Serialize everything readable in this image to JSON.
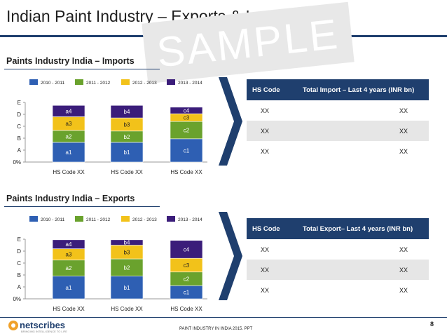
{
  "page": {
    "title": "Indian Paint Industry – Exports & Imports",
    "watermark": "SAMPLE",
    "footer": "PAINT INDUSTRY IN INDIA 2015. PPT",
    "page_number": "8",
    "logo_text": "netscribes",
    "logo_sub": "BRINGING INTELLIGENCE TO LIFE"
  },
  "imports": {
    "section_title": "Paints Industry India – Imports",
    "table": {
      "headers": [
        "HS Code",
        "Total Import – Last 4 years (INR bn)"
      ],
      "rows": [
        [
          "XX",
          "XX"
        ],
        [
          "XX",
          "XX"
        ],
        [
          "XX",
          "XX"
        ]
      ]
    }
  },
  "exports": {
    "section_title": "Paints Industry India – Exports",
    "table": {
      "headers": [
        "HS Code",
        "Total Export– Last 4 years (INR bn)"
      ],
      "rows": [
        [
          "XX",
          "XX"
        ],
        [
          "XX",
          "XX"
        ],
        [
          "XX",
          "XX"
        ]
      ]
    }
  },
  "chart_data": [
    {
      "type": "bar",
      "stacked": true,
      "title": "Paints Industry India – Imports",
      "categories": [
        "HS Code XX",
        "HS Code XX",
        "HS Code XX"
      ],
      "y_tick_labels": [
        "0%",
        "A",
        "B",
        "C",
        "D",
        "E"
      ],
      "ylim": [
        0,
        5
      ],
      "legend_position": "top",
      "series": [
        {
          "name": "2010 - 2011",
          "color": "#2e5fb3",
          "values": [
            1.65,
            1.65,
            1.95
          ],
          "labels": [
            "a1",
            "b1",
            "c1"
          ]
        },
        {
          "name": "2011 - 2012",
          "color": "#6aa22d",
          "values": [
            1.0,
            0.95,
            1.45
          ],
          "labels": [
            "a2",
            "b2",
            "c2"
          ]
        },
        {
          "name": "2012 - 2013",
          "color": "#f2c21a",
          "values": [
            1.15,
            1.1,
            0.65
          ],
          "labels": [
            "a3",
            "b3",
            "c3"
          ]
        },
        {
          "name": "2013 - 2014",
          "color": "#3b1d7a",
          "values": [
            0.95,
            1.05,
            0.55
          ],
          "labels": [
            "a4",
            "b4",
            "c4"
          ]
        }
      ]
    },
    {
      "type": "bar",
      "stacked": true,
      "title": "Paints Industry India – Exports",
      "categories": [
        "HS Code XX",
        "HS Code XX",
        "HS Code XX"
      ],
      "y_tick_labels": [
        "0%",
        "A",
        "B",
        "C",
        "D",
        "E"
      ],
      "ylim": [
        0,
        5
      ],
      "legend_position": "top",
      "series": [
        {
          "name": "2010 - 2011",
          "color": "#2e5fb3",
          "values": [
            1.9,
            1.9,
            1.1
          ],
          "labels": [
            "a1",
            "b1",
            "c1"
          ]
        },
        {
          "name": "2011 - 2012",
          "color": "#6aa22d",
          "values": [
            1.35,
            1.45,
            1.15
          ],
          "labels": [
            "a2",
            "b2",
            "c2"
          ]
        },
        {
          "name": "2012 - 2013",
          "color": "#f2c21a",
          "values": [
            0.95,
            1.15,
            1.15
          ],
          "labels": [
            "a3",
            "b3",
            "c3"
          ]
        },
        {
          "name": "2013 - 2014",
          "color": "#3b1d7a",
          "values": [
            0.75,
            0.45,
            1.5
          ],
          "labels": [
            "a4",
            "b4",
            "c4"
          ]
        }
      ]
    }
  ]
}
